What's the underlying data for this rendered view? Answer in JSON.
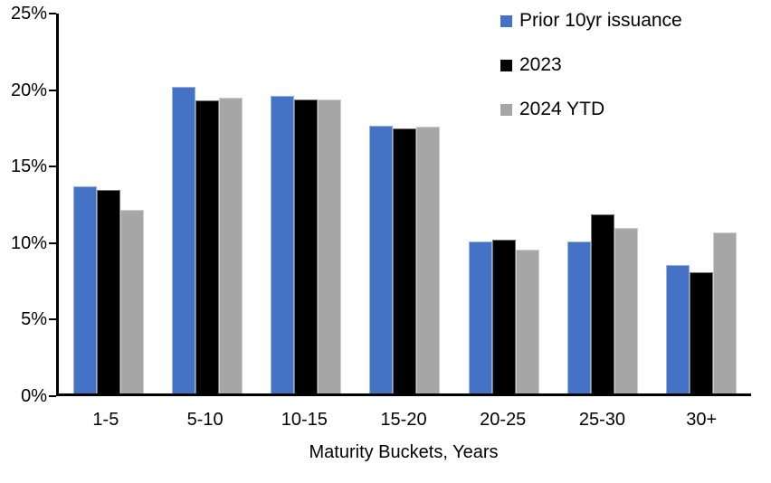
{
  "chart_data": {
    "type": "bar",
    "title": "",
    "xlabel": "Maturity Buckets, Years",
    "ylabel": "",
    "ylim": [
      0,
      25
    ],
    "ytick_step": 5,
    "ytick_suffix": "%",
    "grid": false,
    "legend_position": "top-right",
    "background_color": "#ffffff",
    "axis_color": "#000000",
    "categories": [
      "1-5",
      "5-10",
      "10-15",
      "15-20",
      "20-25",
      "25-30",
      "30+"
    ],
    "series": [
      {
        "name": "Prior 10yr issuance",
        "color": "#4472C4",
        "values": [
          13.7,
          20.2,
          19.6,
          17.7,
          10.1,
          10.1,
          8.6
        ]
      },
      {
        "name": "2023",
        "color": "#000000",
        "values": [
          13.5,
          19.3,
          19.4,
          17.5,
          10.2,
          11.9,
          8.1
        ]
      },
      {
        "name": "2024 YTD",
        "color": "#A6A6A6",
        "values": [
          12.2,
          19.5,
          19.4,
          17.6,
          9.6,
          11.0,
          10.7
        ]
      }
    ]
  }
}
